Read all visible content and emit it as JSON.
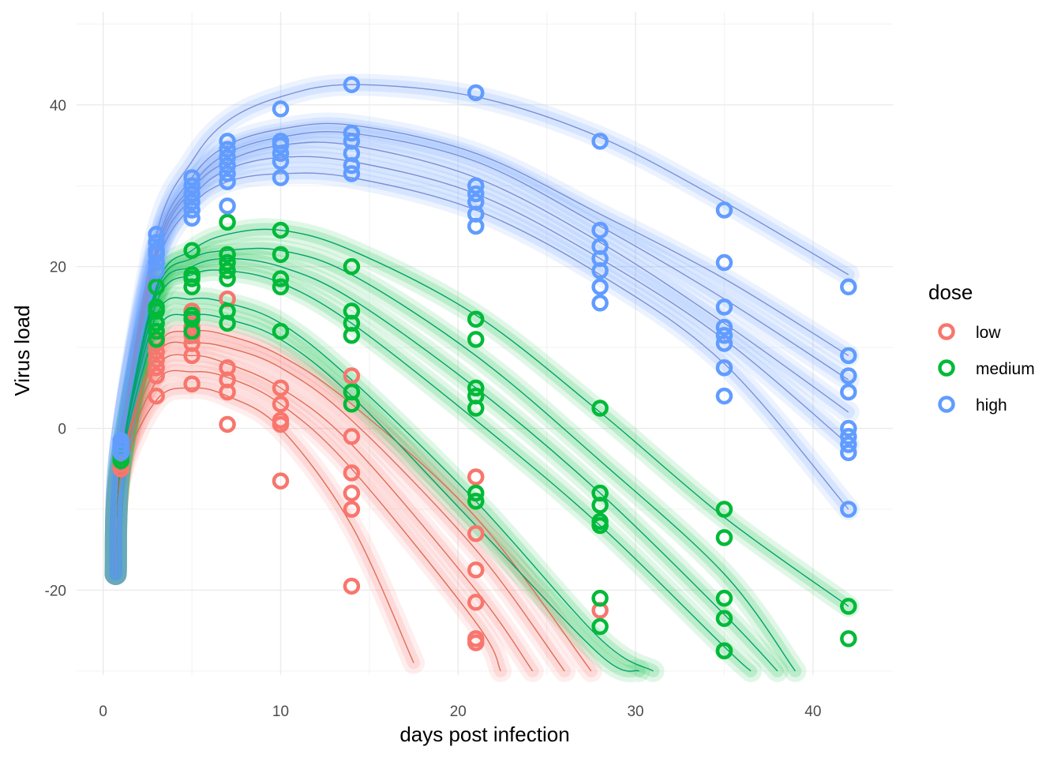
{
  "chart_data": {
    "type": "scatter",
    "xlabel": "days post infection",
    "ylabel": "Virus load",
    "xlim": [
      -1.5,
      44.5
    ],
    "ylim": [
      -30.5,
      51.5
    ],
    "x_ticks": [
      0,
      10,
      20,
      30,
      40
    ],
    "x_tick_labels": [
      "0",
      "10",
      "20",
      "30",
      "40"
    ],
    "y_ticks": [
      -20,
      0,
      20,
      40
    ],
    "y_tick_labels": [
      "-20",
      "0",
      "20",
      "40"
    ],
    "grid": true,
    "legend": {
      "title": "dose",
      "position": "right",
      "entries": [
        "low",
        "medium",
        "high"
      ]
    },
    "colors": {
      "low": "#F8766D",
      "medium": "#00BA38",
      "high": "#619CFF"
    },
    "ribbon_colors": {
      "low": "#F8766D",
      "medium": "#00BA38",
      "high": "#619CFF"
    },
    "curve_line_colors": {
      "low": "#E06E55",
      "medium": "#00A36C",
      "high": "#7F8FD6"
    },
    "series": [
      {
        "name": "low",
        "fit_curves": [
          {
            "x": [
              1,
              3,
              5,
              7,
              10,
              14,
              17.5
            ],
            "y": [
              -6,
              3.5,
              5,
              4,
              0,
              -12,
              -29
            ]
          },
          {
            "x": [
              1,
              3,
              5,
              7,
              10,
              14,
              21,
              22.4
            ],
            "y": [
              -5.5,
              5.8,
              7,
              6.3,
              3,
              -5,
              -24,
              -30
            ]
          },
          {
            "x": [
              1,
              3,
              5,
              7,
              10,
              14,
              21,
              24.2
            ],
            "y": [
              -5,
              7.5,
              9,
              8,
              5,
              -2,
              -20,
              -30
            ]
          },
          {
            "x": [
              1,
              3,
              5,
              7,
              10,
              14,
              21,
              26
            ],
            "y": [
              -5,
              9,
              10.5,
              10,
              7.5,
              1,
              -15,
              -30
            ]
          },
          {
            "x": [
              1,
              3,
              5,
              7,
              10,
              14,
              21,
              27.5
            ],
            "y": [
              -5,
              10,
              12,
              11.5,
              9,
              3,
              -11,
              -30
            ]
          }
        ],
        "points": [
          [
            1,
            -5
          ],
          [
            1,
            -4.5
          ],
          [
            1,
            -4
          ],
          [
            1,
            -3.5
          ],
          [
            3,
            4
          ],
          [
            3,
            6.5
          ],
          [
            3,
            7.5
          ],
          [
            3,
            8.5
          ],
          [
            3,
            9.5
          ],
          [
            3,
            10.5
          ],
          [
            5,
            5.5
          ],
          [
            5,
            9
          ],
          [
            5,
            10.5
          ],
          [
            5,
            11.5
          ],
          [
            5,
            12.5
          ],
          [
            5,
            14.5
          ],
          [
            7,
            0.5
          ],
          [
            7,
            4.5
          ],
          [
            7,
            6
          ],
          [
            7,
            7.5
          ],
          [
            7,
            16
          ],
          [
            10,
            -6.5
          ],
          [
            10,
            0.5
          ],
          [
            10,
            1
          ],
          [
            10,
            3
          ],
          [
            10,
            5
          ],
          [
            14,
            -19.5
          ],
          [
            14,
            -10
          ],
          [
            14,
            -8
          ],
          [
            14,
            -5.5
          ],
          [
            14,
            -1
          ],
          [
            14,
            6.5
          ],
          [
            21,
            -26.5
          ],
          [
            21,
            -26
          ],
          [
            21,
            -21.5
          ],
          [
            21,
            -17.5
          ],
          [
            21,
            -13
          ],
          [
            21,
            -6
          ],
          [
            28,
            -22.5
          ]
        ]
      },
      {
        "name": "medium",
        "fit_curves": [
          {
            "x": [
              1,
              3,
              5,
              7,
              10,
              14,
              21,
              28,
              30.2
            ],
            "y": [
              -4.5,
              12,
              14,
              13.5,
              11,
              4,
              -12,
              -28,
              -30
            ]
          },
          {
            "x": [
              1,
              3,
              5,
              7,
              10,
              14,
              21,
              28,
              31
            ],
            "y": [
              -4,
              14,
              16,
              15.5,
              13,
              6,
              -9,
              -26,
              -30
            ]
          },
          {
            "x": [
              1,
              3,
              5,
              7,
              10,
              14,
              21,
              28,
              35,
              36.5
            ],
            "y": [
              -4,
              15.5,
              19,
              19.5,
              18,
              13,
              1,
              -12,
              -27,
              -30
            ]
          },
          {
            "x": [
              1,
              3,
              5,
              7,
              10,
              14,
              21,
              28,
              35,
              38
            ],
            "y": [
              -4,
              16.5,
              20,
              21,
              20,
              16,
              5,
              -8,
              -23,
              -30
            ]
          },
          {
            "x": [
              1,
              3,
              5,
              7,
              10,
              14,
              21,
              28,
              35,
              39
            ],
            "y": [
              -4,
              17,
              21,
              22,
              22,
              19,
              9,
              -4,
              -18,
              -30
            ]
          },
          {
            "x": [
              1,
              3,
              5,
              7,
              10,
              14,
              21,
              28,
              35,
              42
            ],
            "y": [
              -4,
              17.5,
              22,
              24,
              24.5,
              22,
              14,
              2,
              -11,
              -22
            ]
          }
        ],
        "points": [
          [
            1,
            -4
          ],
          [
            1,
            -3.5
          ],
          [
            1,
            -3
          ],
          [
            3,
            11
          ],
          [
            3,
            12
          ],
          [
            3,
            13
          ],
          [
            3,
            14.5
          ],
          [
            3,
            15
          ],
          [
            3,
            17.5
          ],
          [
            5,
            12
          ],
          [
            5,
            13.5
          ],
          [
            5,
            14
          ],
          [
            5,
            17.5
          ],
          [
            5,
            18.5
          ],
          [
            5,
            19
          ],
          [
            5,
            22
          ],
          [
            7,
            13
          ],
          [
            7,
            14.5
          ],
          [
            7,
            18.5
          ],
          [
            7,
            19.5
          ],
          [
            7,
            20.5
          ],
          [
            7,
            21.5
          ],
          [
            7,
            25.5
          ],
          [
            10,
            12
          ],
          [
            10,
            17.5
          ],
          [
            10,
            18.5
          ],
          [
            10,
            21.5
          ],
          [
            10,
            24.5
          ],
          [
            14,
            3
          ],
          [
            14,
            4.5
          ],
          [
            14,
            11.5
          ],
          [
            14,
            13
          ],
          [
            14,
            14.5
          ],
          [
            14,
            20
          ],
          [
            21,
            2.5
          ],
          [
            21,
            4
          ],
          [
            21,
            5
          ],
          [
            21,
            11
          ],
          [
            21,
            13.5
          ],
          [
            21,
            -9
          ],
          [
            21,
            -8
          ],
          [
            28,
            2.5
          ],
          [
            28,
            -8
          ],
          [
            28,
            -9.5
          ],
          [
            28,
            -11.5
          ],
          [
            28,
            -12
          ],
          [
            28,
            -21
          ],
          [
            28,
            -24.5
          ],
          [
            35,
            -10
          ],
          [
            35,
            -13.5
          ],
          [
            35,
            -21
          ],
          [
            35,
            -23.5
          ],
          [
            35,
            -27.5
          ],
          [
            35,
            -27.5
          ],
          [
            42,
            -22
          ],
          [
            42,
            -26
          ]
        ]
      },
      {
        "name": "high",
        "fit_curves": [
          {
            "x": [
              1,
              3,
              5,
              7,
              10,
              14,
              21,
              28,
              35,
              42
            ],
            "y": [
              -2,
              20,
              27.5,
              30.5,
              31.5,
              31,
              27,
              19,
              8,
              -10
            ]
          },
          {
            "x": [
              1,
              3,
              5,
              7,
              10,
              14,
              21,
              28,
              35,
              42
            ],
            "y": [
              -2,
              21,
              28.5,
              32,
              33.5,
              33,
              29,
              21,
              11,
              -2
            ]
          },
          {
            "x": [
              1,
              3,
              5,
              7,
              10,
              14,
              21,
              28,
              35,
              42
            ],
            "y": [
              -2,
              21.5,
              29.5,
              33,
              35,
              35,
              31,
              23,
              13,
              2
            ]
          },
          {
            "x": [
              1,
              3,
              5,
              7,
              10,
              14,
              21,
              28,
              35,
              42
            ],
            "y": [
              -2,
              22,
              30,
              34,
              36,
              36.5,
              33,
              25,
              16,
              6
            ]
          },
          {
            "x": [
              1,
              3,
              5,
              7,
              10,
              14,
              21,
              28,
              35,
              42
            ],
            "y": [
              -2,
              22.5,
              31,
              35,
              37,
              37.5,
              34,
              26.5,
              18.5,
              9
            ]
          },
          {
            "x": [
              1,
              3,
              5,
              7,
              10,
              14,
              21,
              28,
              35,
              42
            ],
            "y": [
              -2,
              24,
              33,
              38,
              41,
              42.5,
              41,
              36,
              28,
              19
            ]
          }
        ],
        "points": [
          [
            1,
            -1.5
          ],
          [
            1,
            -2
          ],
          [
            1,
            -2.5
          ],
          [
            1,
            -3
          ],
          [
            3,
            19.5
          ],
          [
            3,
            20.5
          ],
          [
            3,
            21.5
          ],
          [
            3,
            22
          ],
          [
            3,
            23
          ],
          [
            3,
            24
          ],
          [
            5,
            26
          ],
          [
            5,
            27
          ],
          [
            5,
            28
          ],
          [
            5,
            29
          ],
          [
            5,
            30
          ],
          [
            5,
            31
          ],
          [
            7,
            27.5
          ],
          [
            7,
            30.5
          ],
          [
            7,
            31.5
          ],
          [
            7,
            32.5
          ],
          [
            7,
            33.5
          ],
          [
            7,
            34.5
          ],
          [
            7,
            35.5
          ],
          [
            10,
            31
          ],
          [
            10,
            33
          ],
          [
            10,
            34
          ],
          [
            10,
            35
          ],
          [
            10,
            35.5
          ],
          [
            10,
            39.5
          ],
          [
            14,
            31.5
          ],
          [
            14,
            32.5
          ],
          [
            14,
            34
          ],
          [
            14,
            35.5
          ],
          [
            14,
            36.5
          ],
          [
            14,
            42.5
          ],
          [
            21,
            25
          ],
          [
            21,
            26.5
          ],
          [
            21,
            28
          ],
          [
            21,
            29
          ],
          [
            21,
            30
          ],
          [
            21,
            41.5
          ],
          [
            28,
            15.5
          ],
          [
            28,
            17.5
          ],
          [
            28,
            19.5
          ],
          [
            28,
            21
          ],
          [
            28,
            22.5
          ],
          [
            28,
            24.5
          ],
          [
            28,
            35.5
          ],
          [
            35,
            4
          ],
          [
            35,
            7.5
          ],
          [
            35,
            10.5
          ],
          [
            35,
            11.5
          ],
          [
            35,
            12.5
          ],
          [
            35,
            15
          ],
          [
            35,
            20.5
          ],
          [
            35,
            27
          ],
          [
            42,
            -10
          ],
          [
            42,
            -3
          ],
          [
            42,
            -2
          ],
          [
            42,
            -1
          ],
          [
            42,
            0
          ],
          [
            42,
            4.5
          ],
          [
            42,
            6.5
          ],
          [
            42,
            9
          ],
          [
            42,
            17.5
          ]
        ]
      }
    ]
  }
}
